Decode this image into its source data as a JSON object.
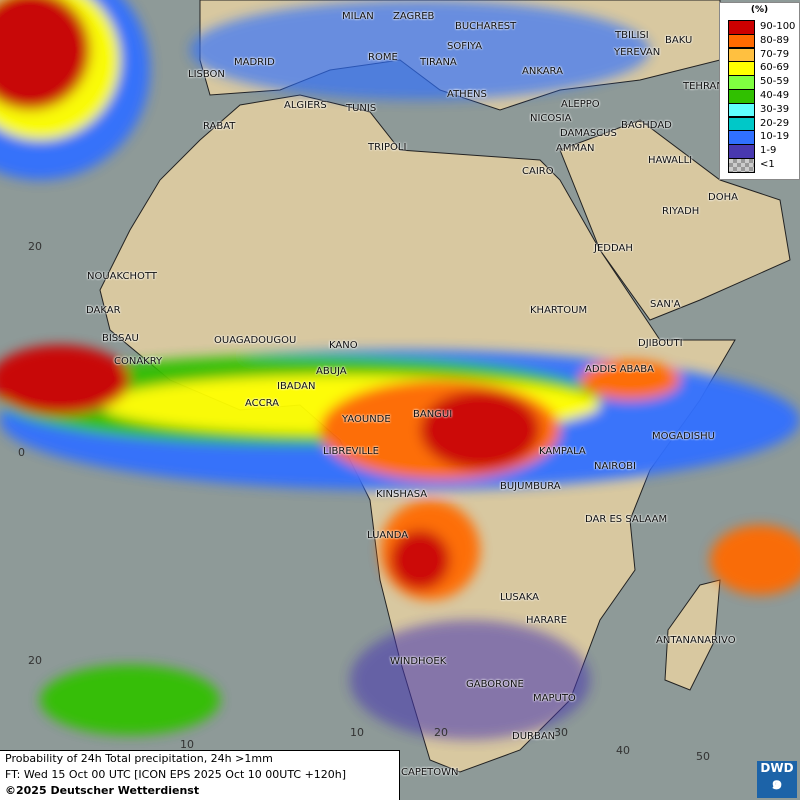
{
  "legend": {
    "unit": "(%)",
    "items": [
      {
        "label": "90-100",
        "color": "#cc0000"
      },
      {
        "label": "80-89",
        "color": "#ff6a00"
      },
      {
        "label": "70-79",
        "color": "#ffc040"
      },
      {
        "label": "60-69",
        "color": "#ffff00"
      },
      {
        "label": "50-59",
        "color": "#80ff40"
      },
      {
        "label": "40-49",
        "color": "#30c000"
      },
      {
        "label": "30-39",
        "color": "#60ffff"
      },
      {
        "label": "20-29",
        "color": "#00c8c8"
      },
      {
        "label": "10-19",
        "color": "#3070ff"
      },
      {
        "label": "1-9",
        "color": "#4838b0"
      },
      {
        "label": "<1",
        "color": "#b0b0b0"
      }
    ]
  },
  "caption": {
    "line1": "Probability of 24h Total precipitation, 24h >1mm",
    "line2": "FT: Wed 15 Oct 00 UTC [ICON EPS 2025 Oct 10 00UTC +120h]",
    "line3": "©2025 Deutscher Wetterdienst"
  },
  "logo": {
    "text": "DWD"
  },
  "grid_labels": {
    "lat": [
      "20",
      "0",
      "20"
    ],
    "lon": [
      "10",
      "10",
      "20",
      "30",
      "40",
      "50"
    ]
  },
  "cities": [
    "MILAN",
    "ZAGREB",
    "BUCHAREST",
    "SOFIYA",
    "ROME",
    "TIRANA",
    "ANKARA",
    "TBILISI",
    "YEREVAN",
    "BAKU",
    "TEHRAN",
    "LISBON",
    "MADRID",
    "ALGIERS",
    "TUNIS",
    "ATHENS",
    "ALEPPO",
    "NICOSIA",
    "BAGHDAD",
    "DAMASCUS",
    "AMMAN",
    "RABAT",
    "TRIPOLI",
    "CAIRO",
    "HAWALLI",
    "DOHA",
    "RIYADH",
    "JEDDAH",
    "NOUAKCHOTT",
    "DAKAR",
    "SAN'A",
    "KHARTOUM",
    "BISSAU",
    "OUAGADOUGOU",
    "KANO",
    "DJIBOUTI",
    "CONAKRY",
    "ABUJA",
    "ADDIS ABABA",
    "IBADAN",
    "ACCRA",
    "YAOUNDE",
    "BANGUI",
    "MOGADISHU",
    "LIBREVILLE",
    "KAMPALA",
    "NAIROBI",
    "BUJUMBURA",
    "KINSHASA",
    "DAR ES SALAAM",
    "LUANDA",
    "LUSAKA",
    "HARARE",
    "ANTANANARIVO",
    "WINDHOEK",
    "GABORONE",
    "MAPUTO",
    "DURBAN",
    "CAPETOWN"
  ]
}
